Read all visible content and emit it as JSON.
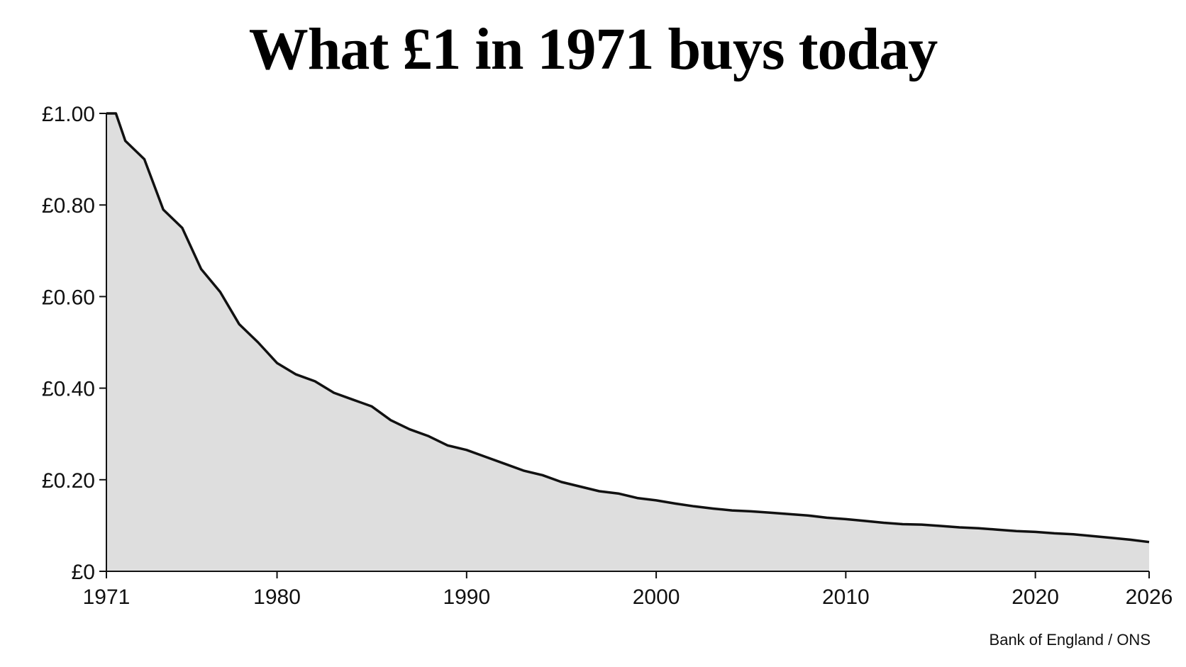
{
  "chart_data": {
    "type": "area",
    "title": "What £1 in 1971 buys today",
    "source": "Bank of England / ONS",
    "xlabel": "",
    "ylabel": "",
    "xlim": [
      1971,
      2026
    ],
    "ylim": [
      0,
      1.0
    ],
    "x_ticks": [
      {
        "value": 1971,
        "label": "1971"
      },
      {
        "value": 1980,
        "label": "1980"
      },
      {
        "value": 1990,
        "label": "1990"
      },
      {
        "value": 2000,
        "label": "2000"
      },
      {
        "value": 2010,
        "label": "2010"
      },
      {
        "value": 2020,
        "label": "2020"
      },
      {
        "value": 2026,
        "label": "2026"
      }
    ],
    "y_ticks": [
      {
        "value": 0,
        "label": "£0"
      },
      {
        "value": 0.2,
        "label": "£0.20"
      },
      {
        "value": 0.4,
        "label": "£0.40"
      },
      {
        "value": 0.6,
        "label": "£0.60"
      },
      {
        "value": 0.8,
        "label": "£0.80"
      },
      {
        "value": 1.0,
        "label": "£1.00"
      }
    ],
    "grid": false,
    "line_color": "#111111",
    "fill_color": "#dedede",
    "series": [
      {
        "x": [
          1971,
          1971.5,
          1972,
          1973,
          1974,
          1975,
          1976,
          1977,
          1978,
          1979,
          1980,
          1981,
          1982,
          1983,
          1984,
          1985,
          1986,
          1987,
          1988,
          1989,
          1990,
          1991,
          1992,
          1993,
          1994,
          1995,
          1996,
          1997,
          1998,
          1999,
          2000,
          2001,
          2002,
          2003,
          2004,
          2005,
          2006,
          2007,
          2008,
          2009,
          2010,
          2011,
          2012,
          2013,
          2014,
          2015,
          2016,
          2017,
          2018,
          2019,
          2020,
          2021,
          2022,
          2023,
          2024,
          2025,
          2026
        ],
        "values": [
          1.0,
          1.0,
          0.94,
          0.9,
          0.79,
          0.75,
          0.66,
          0.61,
          0.54,
          0.5,
          0.455,
          0.43,
          0.415,
          0.39,
          0.375,
          0.36,
          0.33,
          0.31,
          0.295,
          0.275,
          0.265,
          0.25,
          0.235,
          0.22,
          0.21,
          0.195,
          0.185,
          0.175,
          0.17,
          0.16,
          0.155,
          0.148,
          0.142,
          0.137,
          0.133,
          0.131,
          0.128,
          0.125,
          0.122,
          0.117,
          0.114,
          0.11,
          0.106,
          0.103,
          0.102,
          0.099,
          0.096,
          0.094,
          0.091,
          0.088,
          0.086,
          0.083,
          0.081,
          0.077,
          0.073,
          0.069,
          0.064
        ]
      }
    ]
  }
}
